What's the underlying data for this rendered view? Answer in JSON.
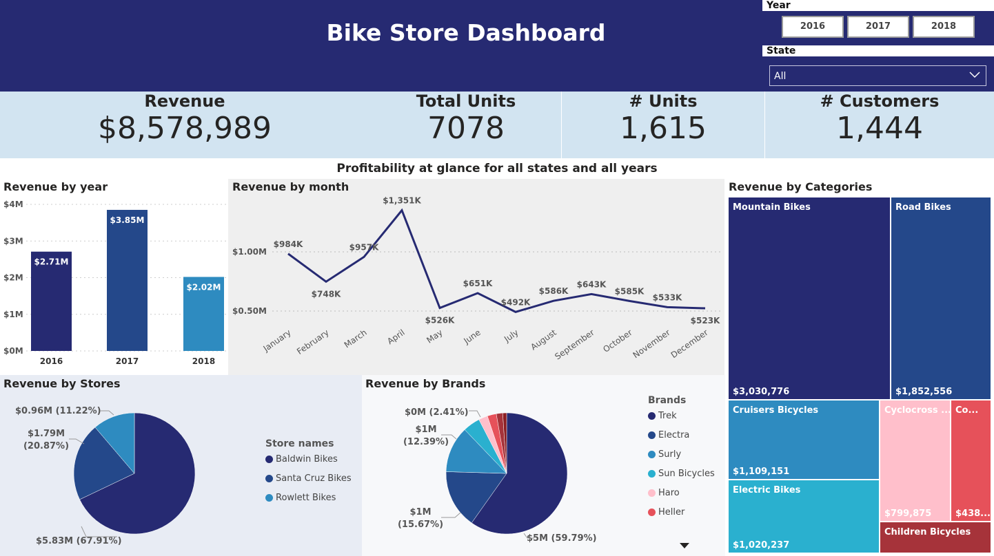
{
  "header": {
    "title": "Bike Store Dashboard"
  },
  "slicers": {
    "year_label": "Year",
    "years": [
      "2016",
      "2017",
      "2018"
    ],
    "state_label": "State",
    "state_value": "All"
  },
  "kpis": [
    {
      "title": "Revenue",
      "value": "$8,578,989"
    },
    {
      "title": "Total Units",
      "value": "7078"
    },
    {
      "title": "# Units",
      "value": "1,615"
    },
    {
      "title": "# Customers",
      "value": "1,444"
    }
  ],
  "subtitle": "Profitability at glance for all states and all years",
  "colors": {
    "navy": "#262A72",
    "blue": "#24488A",
    "mid": "#2E8BC0",
    "cyan": "#2AB0CF",
    "pink": "#FFBFCB",
    "red": "#E6515A",
    "dark_red": "#A6333A",
    "darkest_red": "#8B1E22"
  },
  "chart_data": [
    {
      "id": "year",
      "type": "bar",
      "title": "Revenue by year",
      "categories": [
        "2016",
        "2017",
        "2018"
      ],
      "values": [
        2.71,
        3.85,
        2.02
      ],
      "data_labels": [
        "$2.71M",
        "$3.85M",
        "$2.02M"
      ],
      "y_ticks": [
        "$0M",
        "$1M",
        "$2M",
        "$3M",
        "$4M"
      ],
      "ylim": [
        0,
        4
      ],
      "grid": true
    },
    {
      "id": "month",
      "type": "line",
      "title": "Revenue by month",
      "categories": [
        "January",
        "February",
        "March",
        "April",
        "May",
        "June",
        "July",
        "August",
        "September",
        "October",
        "November",
        "December"
      ],
      "values": [
        984,
        748,
        957,
        1351,
        526,
        651,
        492,
        586,
        643,
        585,
        533,
        523
      ],
      "data_labels": [
        "$984K",
        "$748K",
        "$957K",
        "$1,351K",
        "$526K",
        "$651K",
        "$492K",
        "$586K",
        "$643K",
        "$585K",
        "$533K",
        "$523K"
      ],
      "y_ticks": [
        "$0.50M",
        "$1.00M"
      ],
      "unit": "K",
      "grid": true
    },
    {
      "id": "stores",
      "type": "pie",
      "title": "Revenue by Stores",
      "legend_title": "Store names",
      "legend": "right",
      "slices": [
        {
          "name": "Baldwin Bikes",
          "percent": 67.91,
          "label": "$5.83M (67.91%)"
        },
        {
          "name": "Santa Cruz Bikes",
          "percent": 20.87,
          "label": "$1.79M (20.87%)"
        },
        {
          "name": "Rowlett Bikes",
          "percent": 11.22,
          "label": "$0.96M (11.22%)"
        }
      ]
    },
    {
      "id": "brands",
      "type": "pie",
      "title": "Revenue by Brands",
      "legend_title": "Brands",
      "legend": "right",
      "slices": [
        {
          "name": "Trek",
          "percent": 59.79,
          "label": "$5M (59.79%)"
        },
        {
          "name": "Electra",
          "percent": 15.67,
          "label": "$1M (15.67%)"
        },
        {
          "name": "Surly",
          "percent": 12.39,
          "label": "$1M (12.39%)"
        },
        {
          "name": "Sun Bicycles",
          "percent": 4.6
        },
        {
          "name": "Haro",
          "percent": 2.41,
          "label": "$0M (2.41%)"
        },
        {
          "name": "Heller",
          "percent": 2.4
        },
        {
          "percent": 1.7
        },
        {
          "percent": 1.04
        }
      ]
    },
    {
      "id": "categories",
      "type": "treemap",
      "title": "Revenue by Categories",
      "items": [
        {
          "name": "Mountain Bikes",
          "value": "$3,030,776"
        },
        {
          "name": "Road Bikes",
          "value": "$1,852,556"
        },
        {
          "name": "Cruisers Bicycles",
          "value": "$1,109,151"
        },
        {
          "name": "Electric Bikes",
          "value": "$1,020,237"
        },
        {
          "name": "Cyclocross ...",
          "value": "$799,875"
        },
        {
          "name": "Co...",
          "value": "$438..."
        },
        {
          "name": "Children Bicycles",
          "value": ""
        }
      ]
    }
  ]
}
